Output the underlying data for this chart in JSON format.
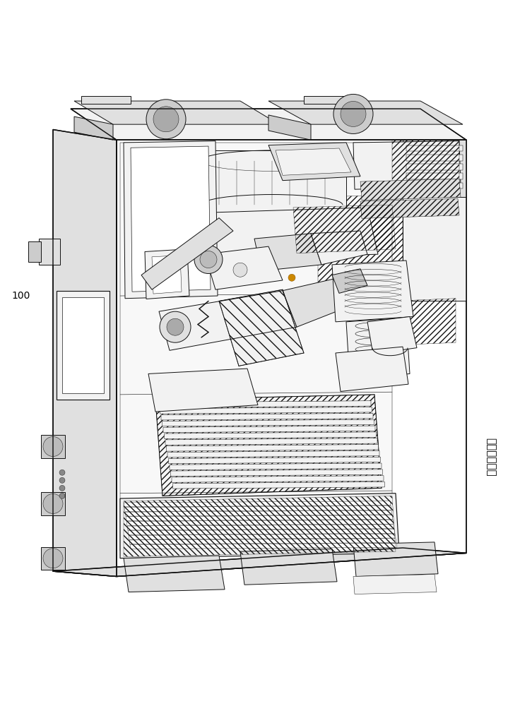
{
  "background_color": "#ffffff",
  "label_100": "100",
  "label_prior_art": "（现有技术）",
  "fig_width": 7.36,
  "fig_height": 10.0,
  "lc": "#111111",
  "lw": 0.7,
  "fc_light": "#f2f2f2",
  "fc_mid": "#e0e0e0",
  "fc_dark": "#cccccc",
  "fc_white": "#ffffff"
}
